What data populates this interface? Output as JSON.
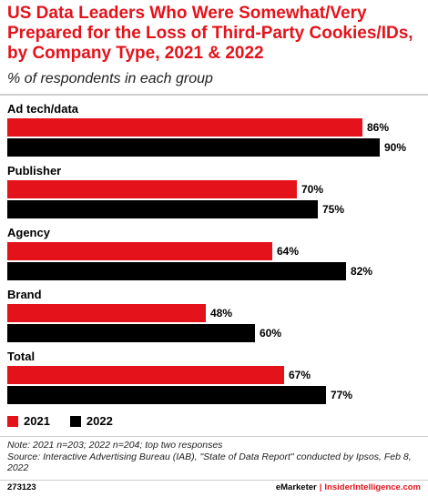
{
  "title": "US Data Leaders Who Were Somewhat/Very Prepared for the Loss of Third-Party Cookies/IDs, by Company Type, 2021 & 2022",
  "subtitle": "% of respondents in each group",
  "chart_data": {
    "type": "bar",
    "orientation": "horizontal",
    "categories": [
      "Ad tech/data",
      "Publisher",
      "Agency",
      "Brand",
      "Total"
    ],
    "series": [
      {
        "name": "2021",
        "color": "#e4131b",
        "values": [
          86,
          70,
          64,
          48,
          67
        ]
      },
      {
        "name": "2022",
        "color": "#000000",
        "values": [
          90,
          75,
          82,
          60,
          77
        ]
      }
    ],
    "value_suffix": "%",
    "xlim": [
      0,
      100
    ],
    "grid": false,
    "legend": "bottom-left"
  },
  "notes": {
    "note": "Note: 2021 n=203; 2022 n=204; top two responses",
    "source": "Source: Interactive Advertising Bureau (IAB), \"State of Data Report\" conducted by Ipsos, Feb 8, 2022"
  },
  "footer": {
    "chart_id": "273123",
    "brand": "eMarketer",
    "separator": "|",
    "site": "InsiderIntelligence.com"
  }
}
